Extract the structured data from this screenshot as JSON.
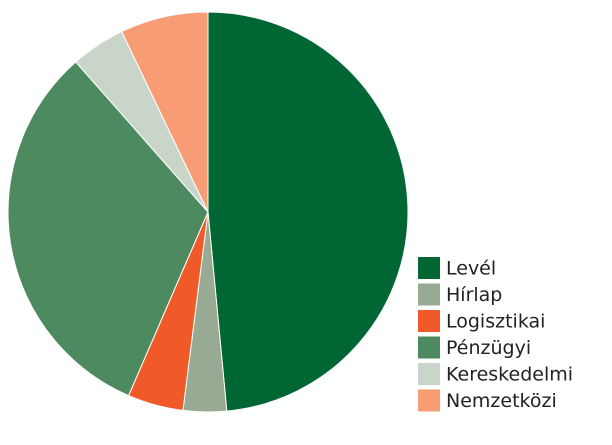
{
  "chart_data": {
    "type": "pie",
    "categories": [
      "Levél",
      "Hírlap",
      "Logisztikai",
      "Pénzügyi",
      "Kereskedelmi",
      "Nemzetközi"
    ],
    "values": [
      48.5,
      3.5,
      4.5,
      32,
      4.4,
      7.1
    ],
    "colors": [
      "#006633",
      "#99aa94",
      "#f05a28",
      "#4e8a60",
      "#c9d5c8",
      "#f79c75"
    ],
    "legend": "lower right"
  }
}
